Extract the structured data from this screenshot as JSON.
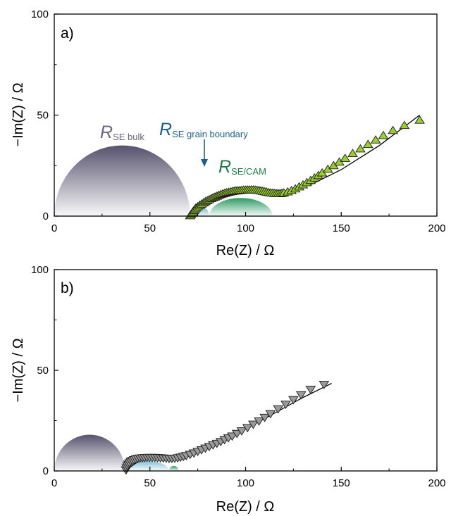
{
  "chart_data": [
    {
      "type": "scatter",
      "panel_label": "a)",
      "xlabel": "Re(Z) / Ω",
      "ylabel": "−Im(Z) / Ω",
      "xlim": [
        0,
        200
      ],
      "ylim": [
        0,
        100
      ],
      "xticks": [
        "0",
        "50",
        "100",
        "150",
        "200"
      ],
      "yticks": [
        "0",
        "50",
        "100"
      ],
      "grid": false,
      "marker": "triangle-up",
      "marker_color": "#9ACD32",
      "series": [
        {
          "x": [
            71,
            71.5,
            72,
            72.5,
            73,
            73.5,
            74,
            75,
            76,
            77,
            78,
            79,
            80,
            81,
            82,
            83,
            84,
            85,
            86,
            87,
            88,
            89,
            90,
            91,
            92,
            93,
            94,
            95,
            96,
            97,
            98,
            99,
            100,
            101,
            102,
            103,
            104,
            105,
            106,
            107,
            108,
            109,
            110,
            111,
            112,
            113,
            114,
            115,
            116,
            117,
            118,
            119,
            120,
            122,
            124,
            126,
            128,
            130,
            132,
            134,
            136,
            138,
            140,
            143,
            146,
            149,
            152,
            156,
            160,
            164,
            168,
            172,
            177,
            183,
            191
          ],
          "y": [
            0.2,
            0.8,
            1.5,
            2.2,
            2.8,
            3.4,
            4,
            4.7,
            5.4,
            6,
            6.6,
            7.2,
            7.7,
            8.2,
            8.7,
            9.1,
            9.5,
            9.9,
            10.3,
            10.7,
            11,
            11.3,
            11.6,
            11.8,
            12,
            12.2,
            12.4,
            12.5,
            12.6,
            12.7,
            12.8,
            12.9,
            12.9,
            13,
            13,
            13,
            13,
            12.9,
            12.8,
            12.7,
            12.5,
            12.3,
            12.1,
            11.9,
            11.7,
            11.5,
            11.4,
            11.3,
            11.2,
            11.2,
            11.2,
            11.3,
            11.5,
            12,
            12.7,
            13.5,
            14.5,
            15.5,
            16.6,
            17.7,
            18.9,
            20.1,
            21.4,
            23.2,
            25,
            26.8,
            28.6,
            31,
            33.3,
            35.5,
            37.7,
            39.9,
            42.4,
            44.9,
            47.5
          ]
        }
      ],
      "fit_line": {
        "x": [
          71,
          90,
          110,
          120,
          135,
          150,
          170,
          191
        ],
        "y": [
          0,
          11,
          12.5,
          11.5,
          16,
          23,
          35,
          50
        ]
      },
      "annotations": [
        {
          "main": "R",
          "sub": "SE bulk",
          "color": "#6A6680"
        },
        {
          "main": "R",
          "sub": "SE grain boundary",
          "color": "#1F5F86"
        },
        {
          "main": "R",
          "sub": "SE/CAM",
          "color": "#1E7A4A"
        }
      ],
      "semicircles": [
        {
          "name": "SE bulk",
          "x_from": 0,
          "x_to": 71,
          "height": 35,
          "color": "#57526E"
        },
        {
          "name": "SE grain boundary",
          "x_from": 71,
          "x_to": 81,
          "height": 5,
          "color": "#5FA9C2"
        },
        {
          "name": "SE/CAM",
          "x_from": 81,
          "x_to": 114,
          "height": 9,
          "color": "#2E9A62"
        }
      ]
    },
    {
      "type": "scatter",
      "panel_label": "b)",
      "xlabel": "Re(Z) / Ω",
      "ylabel": "−Im(Z) / Ω",
      "xlim": [
        0,
        200
      ],
      "ylim": [
        0,
        100
      ],
      "xticks": [
        "0",
        "50",
        "100",
        "150",
        "200"
      ],
      "yticks": [
        "0",
        "50",
        "100"
      ],
      "grid": false,
      "marker": "triangle-down",
      "marker_color": "#9A9A9A",
      "series": [
        {
          "x": [
            37.5,
            37.8,
            38.2,
            38.7,
            39.3,
            40,
            40.8,
            41.7,
            42.7,
            43.7,
            44.8,
            46,
            47.2,
            48.5,
            49.8,
            51.2,
            52.6,
            54,
            55.5,
            57,
            58.5,
            60,
            61.5,
            63,
            64.5,
            66,
            67.5,
            69,
            71,
            73,
            75,
            77,
            79,
            81,
            83,
            85,
            87,
            89,
            91,
            93,
            95.5,
            98,
            101,
            104,
            107,
            110,
            113,
            117,
            121,
            125,
            129,
            134,
            141
          ],
          "y": [
            0.5,
            1.5,
            2.5,
            3.3,
            4,
            4.7,
            5.2,
            5.6,
            5.9,
            6.2,
            6.4,
            6.5,
            6.6,
            6.7,
            6.7,
            6.7,
            6.7,
            6.6,
            6.5,
            6.4,
            6.3,
            6.2,
            6.2,
            6.3,
            6.5,
            6.8,
            7.2,
            7.6,
            8.2,
            8.9,
            9.7,
            10.5,
            11.3,
            12.1,
            12.9,
            13.7,
            14.6,
            15.5,
            16.4,
            17.3,
            18.6,
            19.9,
            21.5,
            23.2,
            24.8,
            26.6,
            28.4,
            30.8,
            33.1,
            35.4,
            37.8,
            40.5,
            43
          ]
        }
      ],
      "fit_line": {
        "x": [
          37,
          45,
          55,
          62,
          75,
          90,
          110,
          130,
          145
        ],
        "y": [
          0,
          5.5,
          6.7,
          6.3,
          9.5,
          16,
          26,
          36.5,
          43.5
        ]
      },
      "semicircles": [
        {
          "name": "SE bulk",
          "x_from": 0,
          "x_to": 37,
          "height": 18,
          "color": "#57526E"
        },
        {
          "name": "SE grain boundary",
          "x_from": 37,
          "x_to": 60,
          "height": 5,
          "color": "#7FBFD4"
        },
        {
          "name": "SE/CAM",
          "x_from": 60,
          "x_to": 65,
          "height": 2.5,
          "color": "#2E9A62"
        }
      ]
    }
  ]
}
